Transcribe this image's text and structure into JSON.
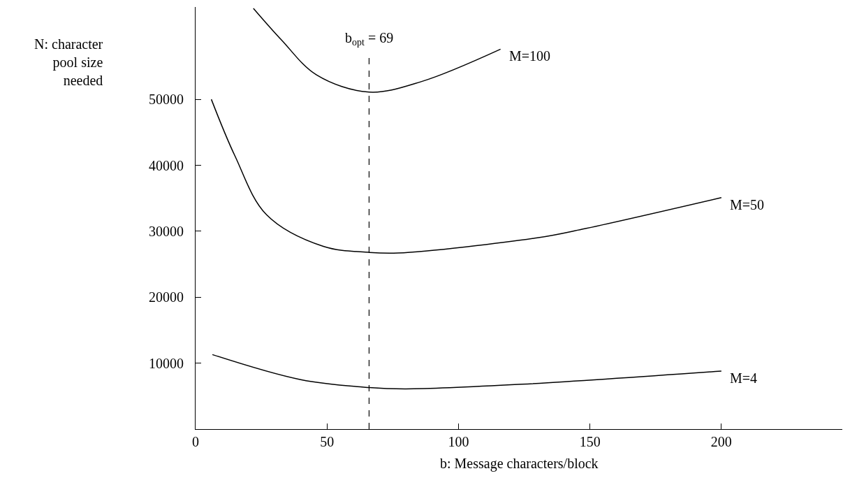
{
  "chart_data": {
    "type": "line",
    "xlabel": "b: Message characters/block",
    "ylabel": "N: character\npool size\nneeded",
    "xlim": [
      0,
      246
    ],
    "ylim": [
      0,
      64000
    ],
    "xticks": [
      0,
      50,
      100,
      150,
      200
    ],
    "yticks": [
      10000,
      20000,
      30000,
      40000,
      50000
    ],
    "grid": false,
    "legend": false,
    "marker": "none",
    "line_style": "solid",
    "series": [
      {
        "name": "M=100",
        "color": "#000000",
        "x": [
          22,
          32.7,
          46,
          66,
          86,
          116
        ],
        "values": [
          63800,
          59000,
          53700,
          51100,
          52700,
          57600
        ]
      },
      {
        "name": "M=50",
        "color": "#000000",
        "x": [
          6,
          15,
          27,
          48.6,
          66,
          77,
          130,
          147,
          200
        ],
        "values": [
          50000,
          41400,
          32500,
          27700,
          26800,
          26700,
          29000,
          30300,
          35100
        ]
      },
      {
        "name": "M=4",
        "color": "#000000",
        "x": [
          6.4,
          40,
          66,
          80,
          124,
          200
        ],
        "values": [
          11300,
          7500,
          6300,
          6100,
          6800,
          8800
        ]
      }
    ],
    "annotations": [
      "b$_{opt}$ = 69"
    ],
    "ref_lines": [
      {
        "axis": "x",
        "value": 66,
        "color": "#000000",
        "line_style": "dashed"
      }
    ]
  }
}
